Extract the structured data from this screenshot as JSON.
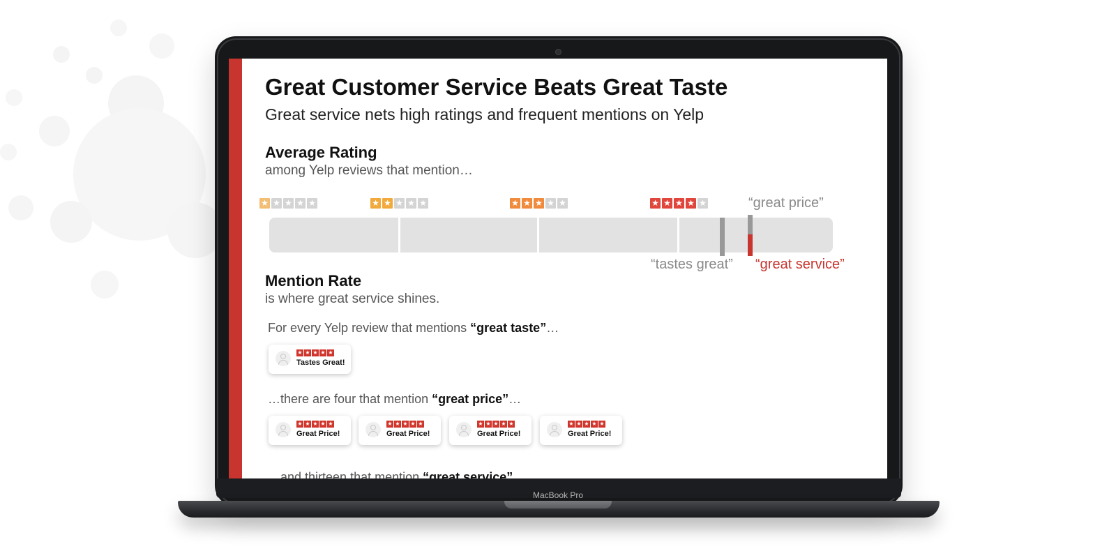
{
  "device": {
    "model_label": "MacBook Pro"
  },
  "page": {
    "title": "Great Customer Service Beats Great Taste",
    "subtitle": "Great service nets high ratings and frequent mentions on Yelp",
    "rating_section": {
      "heading": "Average Rating",
      "subheading": "among Yelp reviews that mention…",
      "star_levels": [
        1,
        2,
        3,
        4
      ],
      "markers": [
        {
          "label": "“great price”",
          "color": "#999999"
        },
        {
          "label": "“tastes great”",
          "color": "#999999"
        },
        {
          "label": "“great service”",
          "color": "#c8352e"
        }
      ]
    },
    "mention_section": {
      "heading": "Mention Rate",
      "subheading": "is where great service shines.",
      "taste": {
        "prefix": "For every Yelp review that mentions ",
        "bold": "“great taste”",
        "suffix": "…"
      },
      "taste_card_label": "Tastes Great!",
      "price": {
        "prefix": "…there are four that mention ",
        "bold": "“great price”",
        "suffix": "…"
      },
      "price_card_label": "Great Price!",
      "price_card_count": 4,
      "service_partial": {
        "prefix": "…and thirteen that mention ",
        "bold": "“great service”"
      }
    }
  },
  "colors": {
    "accent": "#c8352e",
    "track": "#e2e2e2"
  }
}
